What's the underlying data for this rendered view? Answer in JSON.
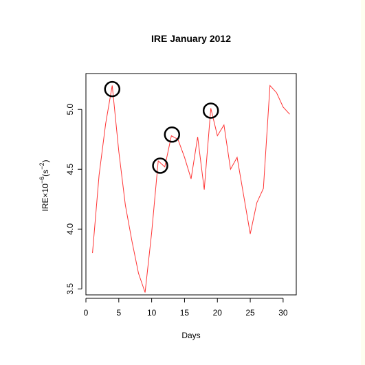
{
  "chart_data": {
    "type": "line",
    "title": "IRE January 2012",
    "xlabel": "Days",
    "ylabel_main": "IRE",
    "ylabel_times": "×",
    "ylabel_base": "10",
    "ylabel_exp": "−6",
    "ylabel_unit_open": "(s",
    "ylabel_unit_exp": "−2",
    "ylabel_unit_close": ")",
    "xlim": [
      0,
      32
    ],
    "ylim": [
      3.45,
      5.3
    ],
    "xticks": [
      0,
      5,
      10,
      15,
      20,
      25,
      30
    ],
    "xtick_labels": [
      "0",
      "5",
      "10",
      "15",
      "20",
      "25",
      "30"
    ],
    "yticks": [
      3.5,
      4.0,
      4.5,
      5.0
    ],
    "ytick_labels": [
      "3.5",
      "4.0",
      "4.5",
      "5.0"
    ],
    "grid": false,
    "series": [
      {
        "color": "#ff3333",
        "x": [
          1,
          2,
          3,
          4,
          5,
          6,
          7,
          8,
          9,
          10,
          11,
          12,
          13,
          14,
          15,
          16,
          17,
          18,
          19,
          20,
          21,
          22,
          23,
          24,
          25,
          26,
          27,
          28,
          29,
          30,
          31
        ],
        "values": [
          3.8,
          4.45,
          4.88,
          5.2,
          4.65,
          4.2,
          3.9,
          3.63,
          3.47,
          3.97,
          4.57,
          4.52,
          4.78,
          4.75,
          4.6,
          4.42,
          4.77,
          4.33,
          5.01,
          4.78,
          4.87,
          4.5,
          4.6,
          4.28,
          3.96,
          4.22,
          4.34,
          5.2,
          5.14,
          5.02,
          4.96
        ]
      }
    ],
    "annotations": [
      {
        "type": "circle",
        "x": 4,
        "y": 5.17
      },
      {
        "type": "circle",
        "x": 11.3,
        "y": 4.53
      },
      {
        "type": "circle",
        "x": 13.1,
        "y": 4.79
      },
      {
        "type": "circle",
        "x": 19,
        "y": 4.99
      }
    ]
  }
}
